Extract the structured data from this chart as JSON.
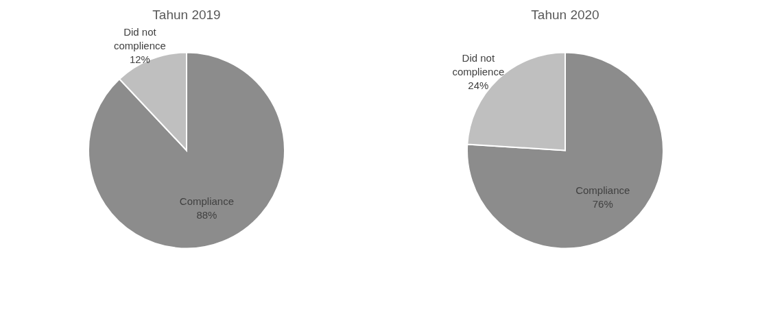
{
  "chart_data": [
    {
      "type": "pie",
      "title": "Tahun 2019",
      "categories": [
        "Compliance",
        "Did not complience"
      ],
      "values": [
        88,
        12
      ],
      "value_labels": [
        "88%",
        "12%"
      ],
      "colors": [
        "#8c8c8c",
        "#bfbfbf"
      ]
    },
    {
      "type": "pie",
      "title": "Tahun 2020",
      "categories": [
        "Compliance",
        "Did not complience"
      ],
      "values": [
        76,
        24
      ],
      "value_labels": [
        "76%",
        "24%"
      ],
      "colors": [
        "#8c8c8c",
        "#bfbfbf"
      ]
    }
  ]
}
